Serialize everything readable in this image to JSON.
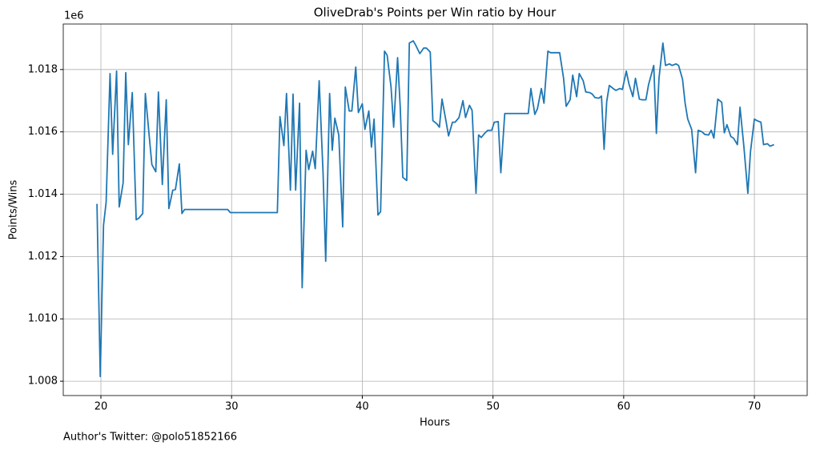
{
  "chart_data": {
    "type": "line",
    "title": "OliveDrab's Points per Win ratio by Hour",
    "xlabel": "Hours",
    "ylabel": "Points/Wins",
    "y_offset_label": "1e6",
    "footnote": "Author's Twitter: @polo51852166",
    "color": "#1f77b4",
    "grid": true,
    "xlim": [
      17.12,
      74.04
    ],
    "xticks": [
      20,
      30,
      40,
      50,
      60,
      70
    ],
    "ylim": [
      1007540,
      1019460
    ],
    "yticks": [
      {
        "value": 1008000,
        "label": "1.008"
      },
      {
        "value": 1010000,
        "label": "1.010"
      },
      {
        "value": 1012000,
        "label": "1.012"
      },
      {
        "value": 1014000,
        "label": "1.014"
      },
      {
        "value": 1016000,
        "label": "1.016"
      },
      {
        "value": 1018000,
        "label": "1.018"
      }
    ],
    "x": [
      19.7,
      19.95,
      20.2,
      20.4,
      20.7,
      20.9,
      21.2,
      21.4,
      21.7,
      21.9,
      22.1,
      22.4,
      22.7,
      22.9,
      23.2,
      23.4,
      23.7,
      23.9,
      24.2,
      24.4,
      24.7,
      25.0,
      25.2,
      25.5,
      25.7,
      26.0,
      26.2,
      26.4,
      29.7,
      29.9,
      33.5,
      33.7,
      34.0,
      34.2,
      34.5,
      34.7,
      34.9,
      35.2,
      35.4,
      35.7,
      35.9,
      36.2,
      36.4,
      36.7,
      37.0,
      37.2,
      37.5,
      37.7,
      37.9,
      38.2,
      38.5,
      38.7,
      39.0,
      39.2,
      39.5,
      39.7,
      40.0,
      40.2,
      40.5,
      40.7,
      40.9,
      41.2,
      41.4,
      41.7,
      41.9,
      42.2,
      42.4,
      42.7,
      42.9,
      43.1,
      43.4,
      43.6,
      43.9,
      44.1,
      44.4,
      44.7,
      44.9,
      45.2,
      45.4,
      45.7,
      45.9,
      46.1,
      46.4,
      46.6,
      46.9,
      47.1,
      47.4,
      47.7,
      47.9,
      48.2,
      48.4,
      48.7,
      48.9,
      49.1,
      49.4,
      49.6,
      49.9,
      50.1,
      50.4,
      50.6,
      50.9,
      52.7,
      52.9,
      53.2,
      53.4,
      53.7,
      53.9,
      54.2,
      54.4,
      55.1,
      55.4,
      55.6,
      55.9,
      56.1,
      56.4,
      56.6,
      56.9,
      57.1,
      57.4,
      57.6,
      57.8,
      58.1,
      58.3,
      58.5,
      58.7,
      58.9,
      59.2,
      59.4,
      59.7,
      59.9,
      60.2,
      60.4,
      60.7,
      60.9,
      61.2,
      61.4,
      61.7,
      61.9,
      62.3,
      62.5,
      62.7,
      63.0,
      63.2,
      63.5,
      63.7,
      64.0,
      64.2,
      64.5,
      64.7,
      64.9,
      65.2,
      65.5,
      65.7,
      66.0,
      66.2,
      66.5,
      66.7,
      66.9,
      67.2,
      67.5,
      67.7,
      67.9,
      68.2,
      68.4,
      68.7,
      68.9,
      69.2,
      69.5,
      69.7,
      70.0,
      70.2,
      70.5,
      70.7,
      71.0,
      71.2,
      71.5
    ],
    "values": [
      1013690,
      1008150,
      1013000,
      1013740,
      1017870,
      1015280,
      1017950,
      1013590,
      1014360,
      1017900,
      1015590,
      1017260,
      1013180,
      1013230,
      1013380,
      1017230,
      1015850,
      1014950,
      1014720,
      1017280,
      1014310,
      1017030,
      1013540,
      1014130,
      1014150,
      1014970,
      1013380,
      1013510,
      1013510,
      1013410,
      1013410,
      1016490,
      1015560,
      1017230,
      1014130,
      1017210,
      1014130,
      1016920,
      1011000,
      1015410,
      1014790,
      1015380,
      1014820,
      1017640,
      1014670,
      1011850,
      1017230,
      1015410,
      1016440,
      1015900,
      1012950,
      1017440,
      1016670,
      1016670,
      1018080,
      1016620,
      1016900,
      1016080,
      1016670,
      1015510,
      1016410,
      1013330,
      1013440,
      1018590,
      1018460,
      1017440,
      1016150,
      1018380,
      1016820,
      1014540,
      1014440,
      1018850,
      1018920,
      1018770,
      1018510,
      1018690,
      1018690,
      1018560,
      1016360,
      1016260,
      1016150,
      1017050,
      1016360,
      1015870,
      1016310,
      1016310,
      1016460,
      1017000,
      1016460,
      1016850,
      1016690,
      1014030,
      1015900,
      1015820,
      1015970,
      1016050,
      1016050,
      1016310,
      1016330,
      1014690,
      1016590,
      1016590,
      1017390,
      1016560,
      1016740,
      1017390,
      1016920,
      1018590,
      1018540,
      1018540,
      1017720,
      1016820,
      1017030,
      1017820,
      1017130,
      1017870,
      1017640,
      1017280,
      1017260,
      1017210,
      1017100,
      1017080,
      1017150,
      1015440,
      1016970,
      1017490,
      1017390,
      1017330,
      1017390,
      1017360,
      1017950,
      1017540,
      1017130,
      1017720,
      1017050,
      1017030,
      1017030,
      1017510,
      1018130,
      1015950,
      1017720,
      1018850,
      1018130,
      1018180,
      1018130,
      1018180,
      1018130,
      1017690,
      1016920,
      1016410,
      1016080,
      1014690,
      1016050,
      1016000,
      1015920,
      1015900,
      1016050,
      1015800,
      1017050,
      1016950,
      1015970,
      1016230,
      1015850,
      1015800,
      1015590,
      1016790,
      1015510,
      1014030,
      1015360,
      1016410,
      1016360,
      1016310,
      1015590,
      1015620,
      1015540,
      1015590
    ]
  }
}
